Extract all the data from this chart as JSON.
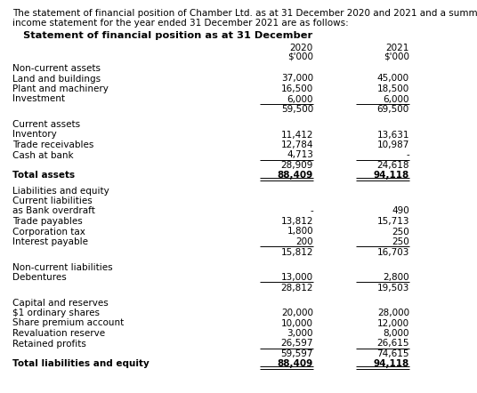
{
  "intro_line1": "The statement of financial position of Chamber Ltd. as at 31 December 2020 and 2021 and a summary of the",
  "intro_line2": "income statement for the year ended 31 December 2021 are as follows:",
  "section_title": "Statement of financial position as at 31 December",
  "rows": [
    {
      "label": "Non-current assets",
      "val2020": "",
      "val2021": "",
      "bold": false,
      "bold_label": false,
      "indent": false,
      "underline_after": false,
      "double_underline_after": false,
      "spacer_before": false,
      "spacer_after": false
    },
    {
      "label": "Land and buildings",
      "val2020": "37,000",
      "val2021": "45,000",
      "bold": false,
      "bold_label": false,
      "indent": false,
      "underline_after": false,
      "double_underline_after": false,
      "spacer_before": false,
      "spacer_after": false
    },
    {
      "label": "Plant and machinery",
      "val2020": "16,500",
      "val2021": "18,500",
      "bold": false,
      "bold_label": false,
      "indent": false,
      "underline_after": false,
      "double_underline_after": false,
      "spacer_before": false,
      "spacer_after": false
    },
    {
      "label": "Investment",
      "val2020": "6,000",
      "val2021": "6,000",
      "bold": false,
      "bold_label": false,
      "indent": false,
      "underline_after": true,
      "double_underline_after": false,
      "spacer_before": false,
      "spacer_after": false
    },
    {
      "label": "",
      "val2020": "59,500",
      "val2021": "69,500",
      "bold": false,
      "bold_label": false,
      "indent": false,
      "underline_after": false,
      "double_underline_after": false,
      "spacer_before": false,
      "spacer_after": true
    },
    {
      "label": "Current assets",
      "val2020": "",
      "val2021": "",
      "bold": false,
      "bold_label": false,
      "indent": false,
      "underline_after": false,
      "double_underline_after": false,
      "spacer_before": false,
      "spacer_after": false
    },
    {
      "label": "Inventory",
      "val2020": "11,412",
      "val2021": "13,631",
      "bold": false,
      "bold_label": false,
      "indent": false,
      "underline_after": false,
      "double_underline_after": false,
      "spacer_before": false,
      "spacer_after": false
    },
    {
      "label": "Trade receivables",
      "val2020": "12,784",
      "val2021": "10,987",
      "bold": false,
      "bold_label": false,
      "indent": false,
      "underline_after": false,
      "double_underline_after": false,
      "spacer_before": false,
      "spacer_after": false
    },
    {
      "label": "Cash at bank",
      "val2020": "4,713",
      "val2021": "-",
      "bold": false,
      "bold_label": false,
      "indent": false,
      "underline_after": true,
      "double_underline_after": false,
      "spacer_before": false,
      "spacer_after": false
    },
    {
      "label": "",
      "val2020": "28,909",
      "val2021": "24,618",
      "bold": false,
      "bold_label": false,
      "indent": false,
      "underline_after": false,
      "double_underline_after": false,
      "spacer_before": false,
      "spacer_after": false
    },
    {
      "label": "Total assets",
      "val2020": "88,409",
      "val2021": "94,118",
      "bold": true,
      "bold_label": true,
      "indent": false,
      "underline_after": false,
      "double_underline_after": true,
      "spacer_before": false,
      "spacer_after": true
    },
    {
      "label": "Liabilities and equity",
      "val2020": "",
      "val2021": "",
      "bold": false,
      "bold_label": false,
      "indent": false,
      "underline_after": false,
      "double_underline_after": false,
      "spacer_before": false,
      "spacer_after": false
    },
    {
      "label": "Current liabilities",
      "val2020": "",
      "val2021": "",
      "bold": false,
      "bold_label": false,
      "indent": false,
      "underline_after": false,
      "double_underline_after": false,
      "spacer_before": false,
      "spacer_after": false
    },
    {
      "label": "as Bank overdraft",
      "val2020": "-",
      "val2021": "490",
      "bold": false,
      "bold_label": false,
      "indent": false,
      "underline_after": false,
      "double_underline_after": false,
      "spacer_before": false,
      "spacer_after": false
    },
    {
      "label": "Trade payables",
      "val2020": "13,812",
      "val2021": "15,713",
      "bold": false,
      "bold_label": false,
      "indent": false,
      "underline_after": false,
      "double_underline_after": false,
      "spacer_before": false,
      "spacer_after": false
    },
    {
      "label": "Corporation tax",
      "val2020": "1,800",
      "val2021": "250",
      "bold": false,
      "bold_label": false,
      "indent": false,
      "underline_after": false,
      "double_underline_after": false,
      "spacer_before": false,
      "spacer_after": false
    },
    {
      "label": "Interest payable",
      "val2020": "200",
      "val2021": "250",
      "bold": false,
      "bold_label": false,
      "indent": false,
      "underline_after": true,
      "double_underline_after": false,
      "spacer_before": false,
      "spacer_after": false
    },
    {
      "label": "",
      "val2020": "15,812",
      "val2021": "16,703",
      "bold": false,
      "bold_label": false,
      "indent": false,
      "underline_after": false,
      "double_underline_after": false,
      "spacer_before": false,
      "spacer_after": true
    },
    {
      "label": "Non-current liabilities",
      "val2020": "",
      "val2021": "",
      "bold": false,
      "bold_label": false,
      "indent": false,
      "underline_after": false,
      "double_underline_after": false,
      "spacer_before": false,
      "spacer_after": false
    },
    {
      "label": "Debentures",
      "val2020": "13,000",
      "val2021": "2,800",
      "bold": false,
      "bold_label": false,
      "indent": false,
      "underline_after": true,
      "double_underline_after": false,
      "spacer_before": false,
      "spacer_after": false
    },
    {
      "label": "",
      "val2020": "28,812",
      "val2021": "19,503",
      "bold": false,
      "bold_label": false,
      "indent": false,
      "underline_after": false,
      "double_underline_after": false,
      "spacer_before": false,
      "spacer_after": true
    },
    {
      "label": "Capital and reserves",
      "val2020": "",
      "val2021": "",
      "bold": false,
      "bold_label": false,
      "indent": false,
      "underline_after": false,
      "double_underline_after": false,
      "spacer_before": false,
      "spacer_after": false
    },
    {
      "label": "$1 ordinary shares",
      "val2020": "20,000",
      "val2021": "28,000",
      "bold": false,
      "bold_label": false,
      "indent": false,
      "underline_after": false,
      "double_underline_after": false,
      "spacer_before": false,
      "spacer_after": false
    },
    {
      "label": "Share premium account",
      "val2020": "10,000",
      "val2021": "12,000",
      "bold": false,
      "bold_label": false,
      "indent": false,
      "underline_after": false,
      "double_underline_after": false,
      "spacer_before": false,
      "spacer_after": false
    },
    {
      "label": "Revaluation reserve",
      "val2020": "3,000",
      "val2021": "8,000",
      "bold": false,
      "bold_label": false,
      "indent": false,
      "underline_after": false,
      "double_underline_after": false,
      "spacer_before": false,
      "spacer_after": false
    },
    {
      "label": "Retained profits",
      "val2020": "26,597",
      "val2021": "26,615",
      "bold": false,
      "bold_label": false,
      "indent": false,
      "underline_after": true,
      "double_underline_after": false,
      "spacer_before": false,
      "spacer_after": false
    },
    {
      "label": "",
      "val2020": "59,597",
      "val2021": "74,615",
      "bold": false,
      "bold_label": false,
      "indent": false,
      "underline_after": false,
      "double_underline_after": false,
      "spacer_before": false,
      "spacer_after": false
    },
    {
      "label": "Total liabilities and equity",
      "val2020": "88,409",
      "val2021": "94,118",
      "bold": true,
      "bold_label": true,
      "indent": false,
      "underline_after": false,
      "double_underline_after": true,
      "spacer_before": false,
      "spacer_after": false
    }
  ],
  "bg_color": "#ffffff",
  "text_color": "#000000",
  "font_size": 7.5,
  "intro_font_size": 7.5,
  "title_font_size": 8.2
}
